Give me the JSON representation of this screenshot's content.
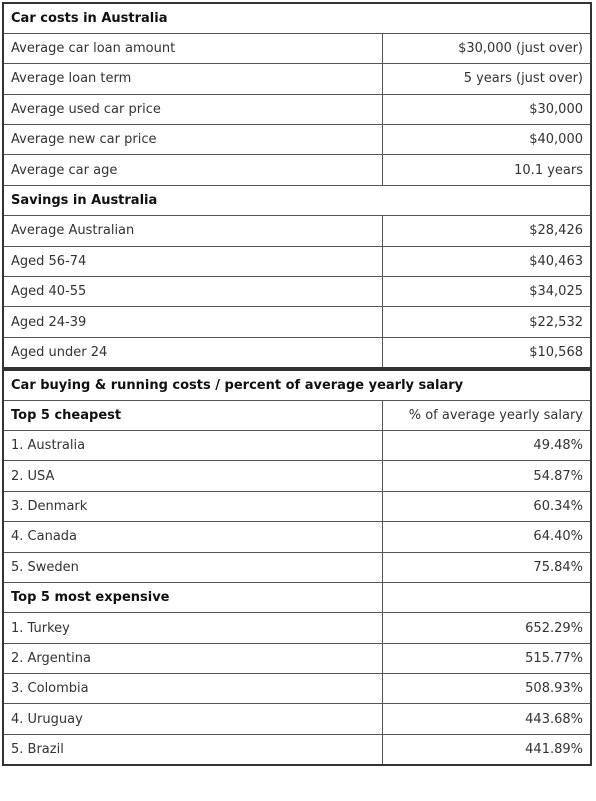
{
  "sections": [
    {
      "title": "Car costs in Australia",
      "rows": [
        [
          "Average car loan amount",
          "$30,000 (just over)"
        ],
        [
          "Average loan term",
          "5 years (just over)"
        ],
        [
          "Average used car price",
          "$30,000"
        ],
        [
          "Average new car price",
          "$40,000"
        ],
        [
          "Average car age",
          "10.1 years"
        ]
      ]
    },
    {
      "title": "Savings in Australia",
      "rows": [
        [
          "Average Australian",
          "$28,426"
        ],
        [
          "Aged 56-74",
          "$40,463"
        ],
        [
          "Aged 40-55",
          "$34,025"
        ],
        [
          "Aged 24-39",
          "$22,532"
        ],
        [
          "Aged under 24",
          "$10,568"
        ]
      ]
    }
  ],
  "comparison": {
    "title": "Car buying & running costs / percent of average yearly salary",
    "groups": [
      {
        "title": "Top 5 cheapest",
        "column_header": "% of average yearly salary",
        "rows": [
          [
            "1. Australia",
            "49.48%"
          ],
          [
            "2. USA",
            "54.87%"
          ],
          [
            "3. Denmark",
            "60.34%"
          ],
          [
            "4. Canada",
            "64.40%"
          ],
          [
            "5. Sweden",
            "75.84%"
          ]
        ]
      },
      {
        "title": "Top 5 most expensive",
        "rows": [
          [
            "1. Turkey",
            "652.29%"
          ],
          [
            "2. Argentina",
            "515.77%"
          ],
          [
            "3. Colombia",
            "508.93%"
          ],
          [
            "4. Uruguay",
            "443.68%"
          ],
          [
            "5. Brazil",
            "441.89%"
          ]
        ]
      }
    ]
  }
}
